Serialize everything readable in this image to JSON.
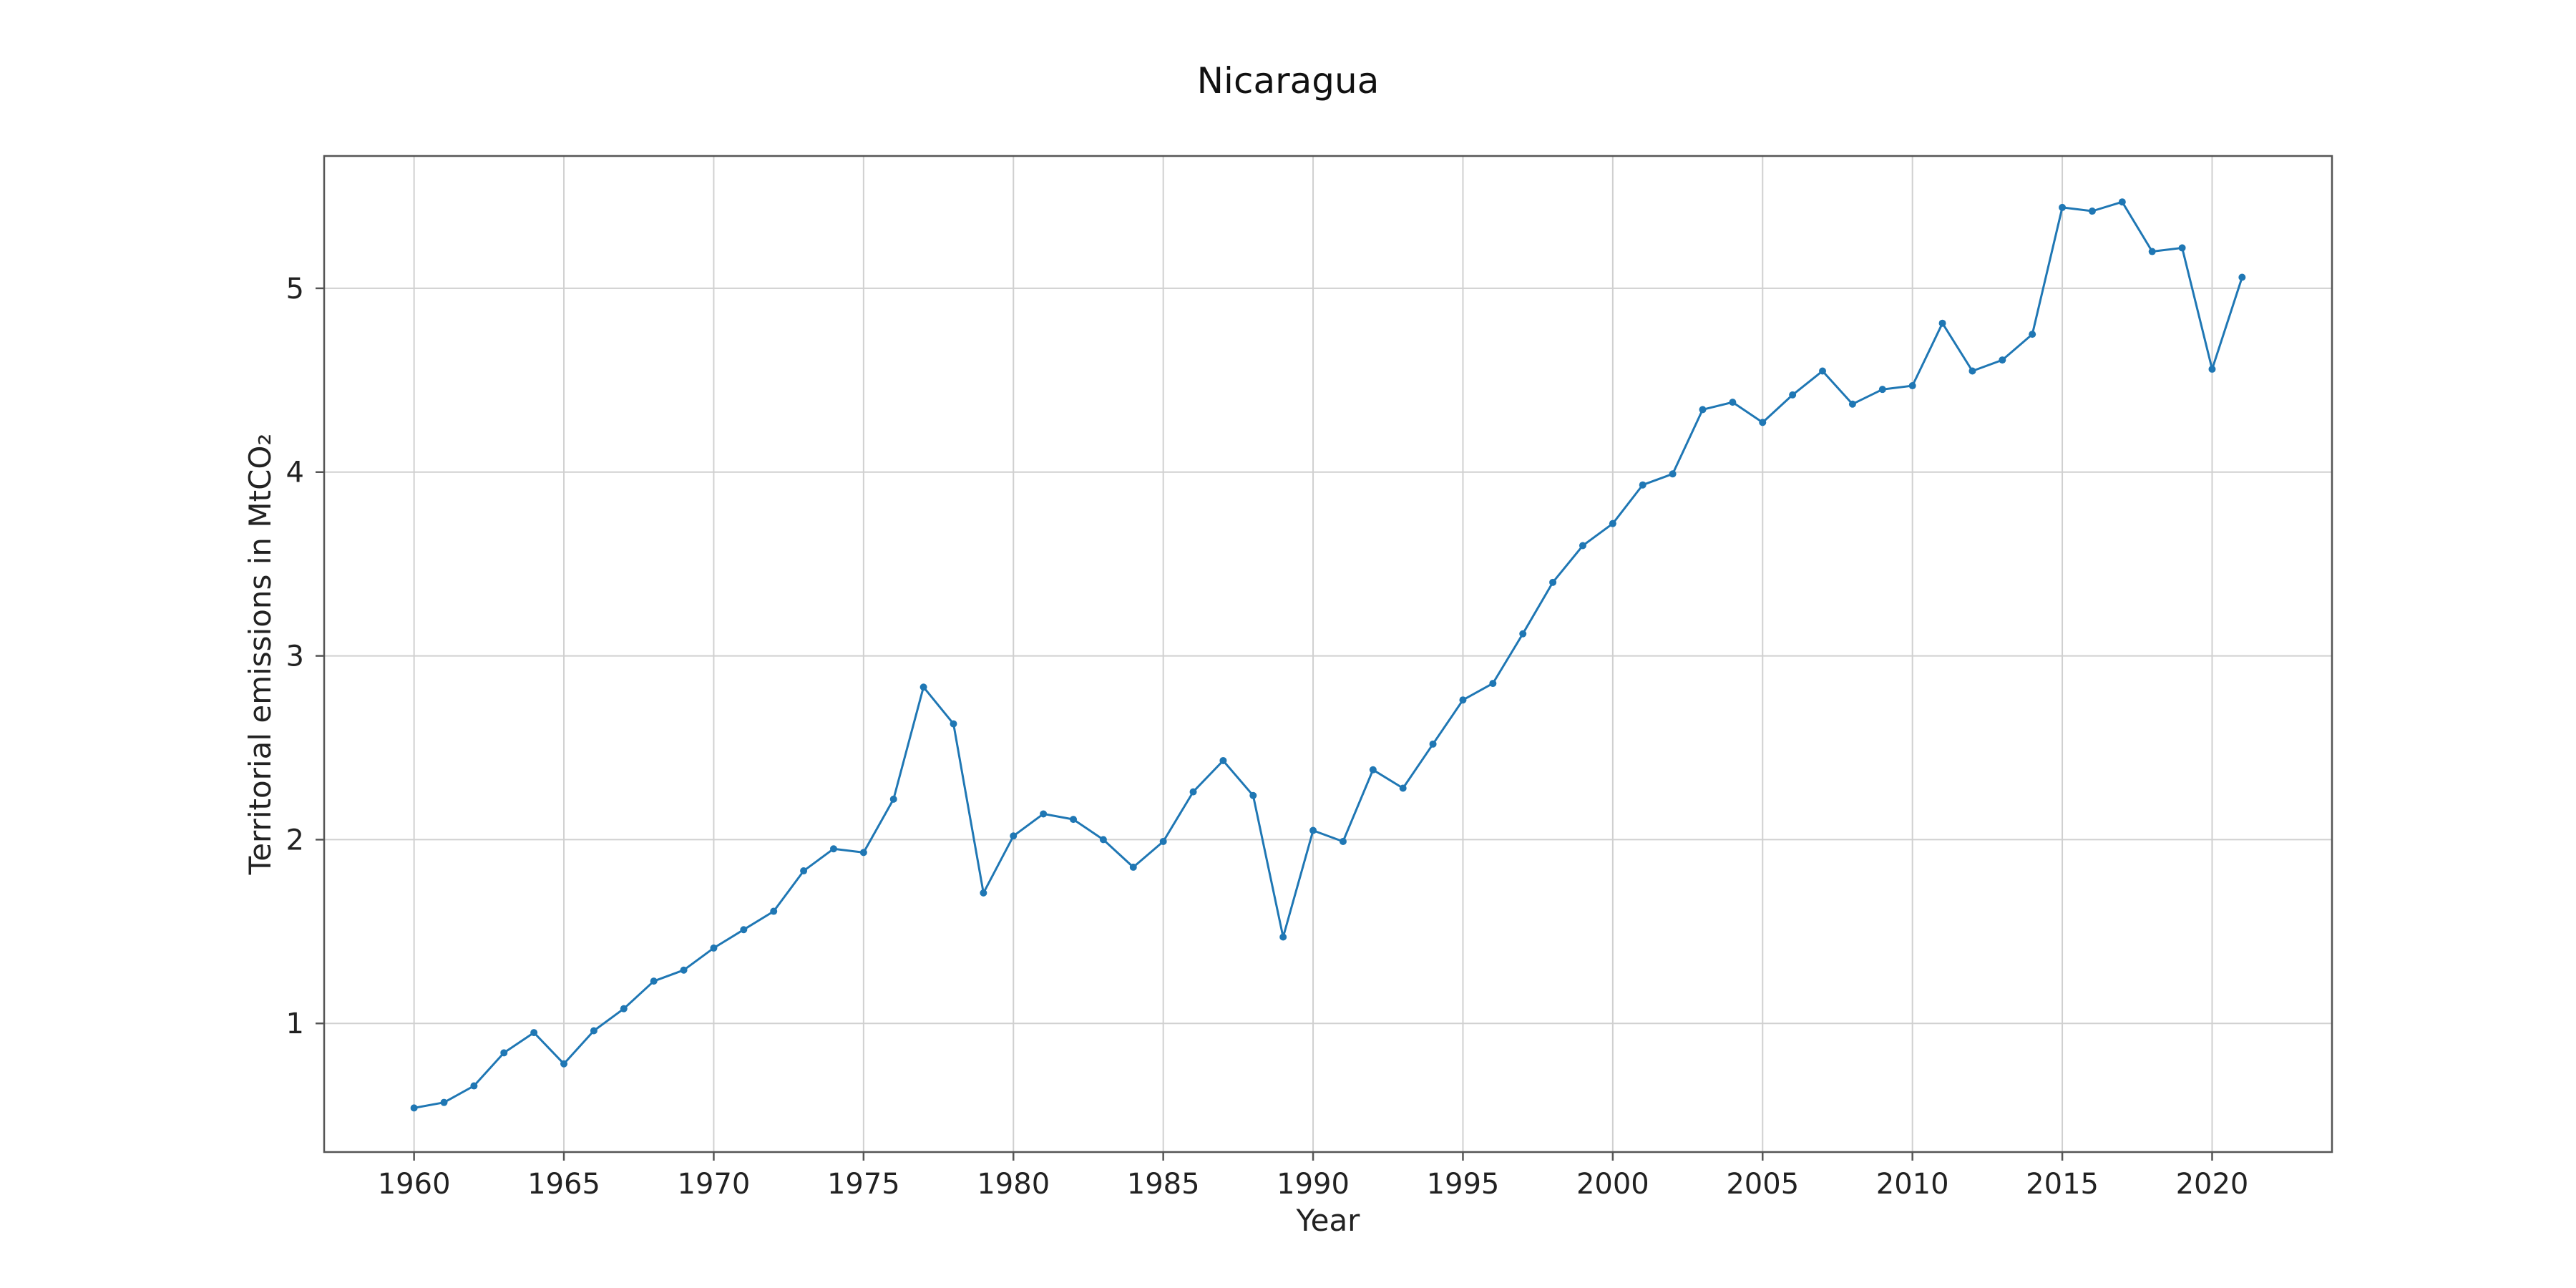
{
  "chart_data": {
    "type": "line",
    "title": "Nicaragua",
    "xlabel": "Year",
    "ylabel": "Territorial emissions in MtCO₂",
    "xlim": [
      1957,
      2024
    ],
    "ylim": [
      0.3,
      5.72
    ],
    "xticks": [
      "1960",
      "1965",
      "1970",
      "1975",
      "1980",
      "1985",
      "1990",
      "1995",
      "2000",
      "2005",
      "2010",
      "2015",
      "2020"
    ],
    "yticks": [
      "1",
      "2",
      "3",
      "4",
      "5"
    ],
    "grid": true,
    "series_color": "#1f77b4",
    "series": [
      {
        "x": [
          1960,
          1961,
          1962,
          1963,
          1964,
          1965,
          1966,
          1967,
          1968,
          1969,
          1970,
          1971,
          1972,
          1973,
          1974,
          1975,
          1976,
          1977,
          1978,
          1979,
          1980,
          1981,
          1982,
          1983,
          1984,
          1985,
          1986,
          1987,
          1988,
          1989,
          1990,
          1991,
          1992,
          1993,
          1994,
          1995,
          1996,
          1997,
          1998,
          1999,
          2000,
          2001,
          2002,
          2003,
          2004,
          2005,
          2006,
          2007,
          2008,
          2009,
          2010,
          2011,
          2012,
          2013,
          2014,
          2015,
          2016,
          2017,
          2018,
          2019,
          2020,
          2021
        ],
        "values": [
          0.54,
          0.57,
          0.66,
          0.84,
          0.95,
          0.78,
          0.96,
          1.08,
          1.23,
          1.29,
          1.41,
          1.51,
          1.61,
          1.83,
          1.95,
          1.93,
          2.22,
          2.83,
          2.63,
          1.71,
          2.02,
          2.14,
          2.11,
          2.0,
          1.85,
          1.99,
          2.26,
          2.43,
          2.24,
          1.47,
          2.05,
          1.99,
          2.38,
          2.28,
          2.52,
          2.76,
          2.85,
          3.12,
          3.4,
          3.6,
          3.72,
          3.93,
          3.99,
          4.34,
          4.38,
          4.27,
          4.42,
          4.55,
          4.37,
          4.45,
          4.47,
          4.81,
          4.55,
          4.61,
          4.75,
          5.44,
          5.42,
          5.47,
          5.2,
          5.22,
          4.56,
          5.06
        ]
      }
    ]
  }
}
